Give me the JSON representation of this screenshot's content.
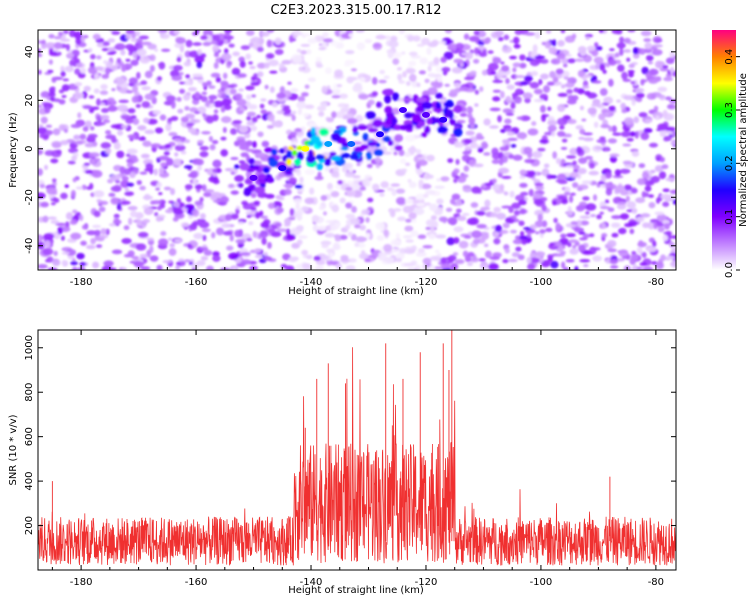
{
  "figure": {
    "title": "C2E3.2023.315.00.17.R12"
  },
  "colors": {
    "snr_line": "#f03030",
    "axis": "#000000",
    "background": "#ffffff"
  },
  "chart_data": [
    {
      "type": "heatmap",
      "xlabel": "Height of straight line (km)",
      "ylabel": "Frequency (Hz)",
      "xlim": [
        -187.5,
        -76.5
      ],
      "ylim": [
        -50,
        49
      ],
      "xticks": [
        -180,
        -160,
        -140,
        -120,
        -100,
        -80
      ],
      "xtick_labels": [
        "-180",
        "-160",
        "-140",
        "-120",
        "-100",
        "-80"
      ],
      "yticks": [
        -40,
        -20,
        0,
        20,
        40
      ],
      "ytick_labels": [
        "-40",
        "-20",
        "0",
        "20",
        "40"
      ],
      "colorbar": {
        "label": "Normalized spectral amplitude",
        "range": [
          0,
          0.45
        ],
        "ticks": [
          0,
          0.1,
          0.2,
          0.3,
          0.4
        ],
        "tick_labels": [
          "0.0",
          "0.1",
          "0.2",
          "0.3",
          "0.4"
        ],
        "colormap": [
          "#ffffff",
          "#c080ff",
          "#8000ff",
          "#2000ff",
          "#00a0ff",
          "#00ffff",
          "#00ff00",
          "#ffff00",
          "#ff8000",
          "#ff0080"
        ]
      },
      "features": {
        "background_noise_amplitude": 0.05,
        "gap_regions_km": [
          [
            -143,
            -130
          ],
          [
            -128,
            -117
          ]
        ],
        "echo_band": [
          {
            "x": -150,
            "y": -12,
            "amplitude": 0.12
          },
          {
            "x": -145,
            "y": -8,
            "amplitude": 0.15
          },
          {
            "x": -141,
            "y": 0,
            "amplitude": 0.35
          },
          {
            "x": -137,
            "y": 2,
            "amplitude": 0.2
          },
          {
            "x": -133,
            "y": 2,
            "amplitude": 0.18
          },
          {
            "x": -128,
            "y": 6,
            "amplitude": 0.15
          },
          {
            "x": -124,
            "y": 16,
            "amplitude": 0.13
          },
          {
            "x": -120,
            "y": 14,
            "amplitude": 0.12
          },
          {
            "x": -117,
            "y": 12,
            "amplitude": 0.14
          }
        ]
      }
    },
    {
      "type": "line",
      "xlabel": "Height of straight line (km)",
      "ylabel": "SNR (10 * v/v)",
      "xlim": [
        -187.5,
        -76.5
      ],
      "ylim": [
        0,
        1080
      ],
      "xticks": [
        -180,
        -160,
        -140,
        -120,
        -100,
        -80
      ],
      "xtick_labels": [
        "-180",
        "-160",
        "-140",
        "-120",
        "-100",
        "-80"
      ],
      "yticks": [
        200,
        400,
        600,
        800,
        1000
      ],
      "ytick_labels": [
        "200",
        "400",
        "600",
        "800",
        "1000"
      ],
      "profile": {
        "baseline": 130,
        "baseline_spread": 110,
        "enhanced_region": [
          -143,
          -115
        ],
        "enhanced_level": 300,
        "peaks": [
          {
            "x": -185,
            "y": 400
          },
          {
            "x": -141,
            "y": 640
          },
          {
            "x": -139,
            "y": 860
          },
          {
            "x": -137,
            "y": 930
          },
          {
            "x": -134,
            "y": 840
          },
          {
            "x": -127,
            "y": 1020
          },
          {
            "x": -124,
            "y": 860
          },
          {
            "x": -121,
            "y": 980
          },
          {
            "x": -117,
            "y": 1020
          },
          {
            "x": -115.5,
            "y": 1080
          },
          {
            "x": -116,
            "y": 900
          },
          {
            "x": -88,
            "y": 420
          }
        ]
      }
    }
  ]
}
